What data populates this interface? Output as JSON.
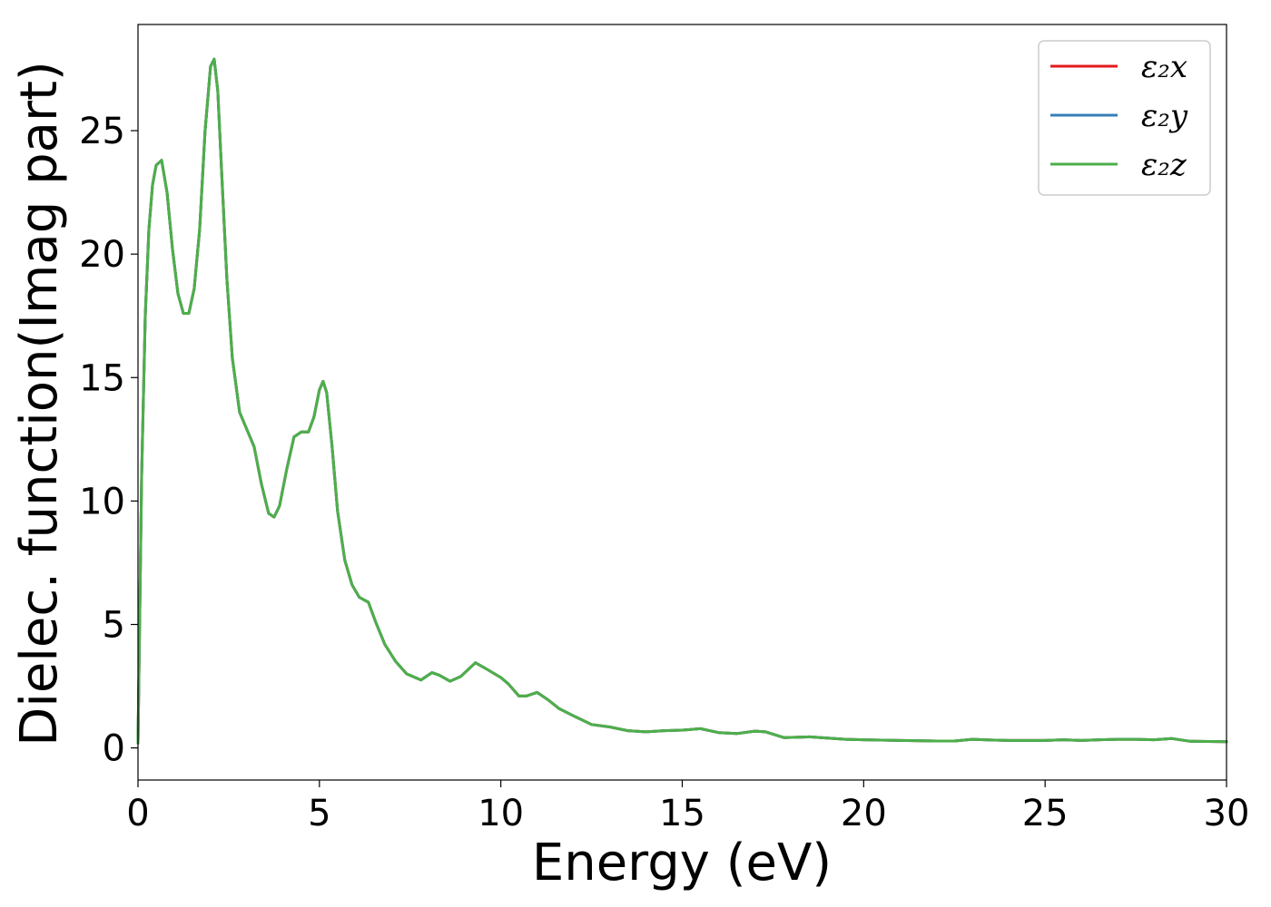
{
  "chart_data": {
    "type": "line",
    "title": "",
    "xlabel": "Energy (eV)",
    "ylabel": "Dielec. function(Imag part)",
    "xlim": [
      0,
      30
    ],
    "ylim": [
      -1.3,
      29.3
    ],
    "xticks": [
      0,
      5,
      10,
      15,
      20,
      25,
      30
    ],
    "yticks": [
      0,
      5,
      10,
      15,
      20,
      25
    ],
    "grid": false,
    "legend_position": "top-right",
    "x": [
      0,
      0.1,
      0.2,
      0.3,
      0.4,
      0.5,
      0.65,
      0.8,
      0.95,
      1.1,
      1.25,
      1.4,
      1.55,
      1.7,
      1.85,
      2.0,
      2.1,
      2.2,
      2.3,
      2.45,
      2.6,
      2.8,
      3.0,
      3.2,
      3.4,
      3.6,
      3.75,
      3.9,
      4.1,
      4.3,
      4.5,
      4.7,
      4.85,
      5.0,
      5.1,
      5.2,
      5.35,
      5.5,
      5.7,
      5.9,
      6.1,
      6.35,
      6.55,
      6.8,
      7.1,
      7.4,
      7.8,
      8.1,
      8.3,
      8.6,
      8.9,
      9.3,
      9.6,
      10.0,
      10.2,
      10.5,
      10.7,
      11.0,
      11.3,
      11.6,
      12.0,
      12.5,
      13.0,
      13.5,
      14.0,
      14.5,
      15.0,
      15.5,
      16.0,
      16.5,
      17.0,
      17.3,
      17.8,
      18.5,
      19.0,
      19.5,
      20.0,
      21.0,
      22.0,
      22.5,
      23.0,
      23.5,
      24.0,
      25.0,
      25.5,
      26.0,
      26.5,
      27.0,
      27.5,
      28.0,
      28.5,
      29.0,
      30.0
    ],
    "series": [
      {
        "name": "ε₂x",
        "color": "#e41a1c",
        "values": [
          0.2,
          11.0,
          17.5,
          21.0,
          22.8,
          23.6,
          23.8,
          22.5,
          20.2,
          18.4,
          17.6,
          17.6,
          18.6,
          21.0,
          25.0,
          27.6,
          27.9,
          26.6,
          23.5,
          19.0,
          15.8,
          13.6,
          12.9,
          12.2,
          10.7,
          9.5,
          9.35,
          9.8,
          11.3,
          12.6,
          12.8,
          12.8,
          13.4,
          14.5,
          14.85,
          14.4,
          12.2,
          9.6,
          7.6,
          6.6,
          6.1,
          5.9,
          5.1,
          4.2,
          3.5,
          3.0,
          2.75,
          3.05,
          2.95,
          2.7,
          2.9,
          3.45,
          3.2,
          2.85,
          2.6,
          2.1,
          2.1,
          2.25,
          1.95,
          1.6,
          1.3,
          0.95,
          0.85,
          0.7,
          0.65,
          0.7,
          0.72,
          0.78,
          0.62,
          0.58,
          0.68,
          0.65,
          0.42,
          0.45,
          0.4,
          0.35,
          0.33,
          0.3,
          0.28,
          0.28,
          0.35,
          0.32,
          0.3,
          0.3,
          0.33,
          0.3,
          0.33,
          0.35,
          0.35,
          0.33,
          0.38,
          0.27,
          0.25
        ]
      },
      {
        "name": "ε₂y",
        "color": "#377eb8",
        "values": [
          0.2,
          11.0,
          17.5,
          21.0,
          22.8,
          23.6,
          23.8,
          22.5,
          20.2,
          18.4,
          17.6,
          17.6,
          18.6,
          21.0,
          25.0,
          27.6,
          27.9,
          26.6,
          23.5,
          19.0,
          15.8,
          13.6,
          12.9,
          12.2,
          10.7,
          9.5,
          9.35,
          9.8,
          11.3,
          12.6,
          12.8,
          12.8,
          13.4,
          14.5,
          14.85,
          14.4,
          12.2,
          9.6,
          7.6,
          6.6,
          6.1,
          5.9,
          5.1,
          4.2,
          3.5,
          3.0,
          2.75,
          3.05,
          2.95,
          2.7,
          2.9,
          3.45,
          3.2,
          2.85,
          2.6,
          2.1,
          2.1,
          2.25,
          1.95,
          1.6,
          1.3,
          0.95,
          0.85,
          0.7,
          0.65,
          0.7,
          0.72,
          0.78,
          0.62,
          0.58,
          0.68,
          0.65,
          0.42,
          0.45,
          0.4,
          0.35,
          0.33,
          0.3,
          0.28,
          0.28,
          0.35,
          0.32,
          0.3,
          0.3,
          0.33,
          0.3,
          0.33,
          0.35,
          0.35,
          0.33,
          0.38,
          0.27,
          0.25
        ]
      },
      {
        "name": "ε₂z",
        "color": "#4daf4a",
        "values": [
          0.2,
          11.0,
          17.5,
          21.0,
          22.8,
          23.6,
          23.8,
          22.5,
          20.2,
          18.4,
          17.6,
          17.6,
          18.6,
          21.0,
          25.0,
          27.6,
          27.9,
          26.6,
          23.5,
          19.0,
          15.8,
          13.6,
          12.9,
          12.2,
          10.7,
          9.5,
          9.35,
          9.8,
          11.3,
          12.6,
          12.8,
          12.8,
          13.4,
          14.5,
          14.85,
          14.4,
          12.2,
          9.6,
          7.6,
          6.6,
          6.1,
          5.9,
          5.1,
          4.2,
          3.5,
          3.0,
          2.75,
          3.05,
          2.95,
          2.7,
          2.9,
          3.45,
          3.2,
          2.85,
          2.6,
          2.1,
          2.1,
          2.25,
          1.95,
          1.6,
          1.3,
          0.95,
          0.85,
          0.7,
          0.65,
          0.7,
          0.72,
          0.78,
          0.62,
          0.58,
          0.68,
          0.65,
          0.42,
          0.45,
          0.4,
          0.35,
          0.33,
          0.3,
          0.28,
          0.28,
          0.35,
          0.32,
          0.3,
          0.3,
          0.33,
          0.3,
          0.33,
          0.35,
          0.35,
          0.33,
          0.38,
          0.27,
          0.25
        ]
      }
    ]
  }
}
